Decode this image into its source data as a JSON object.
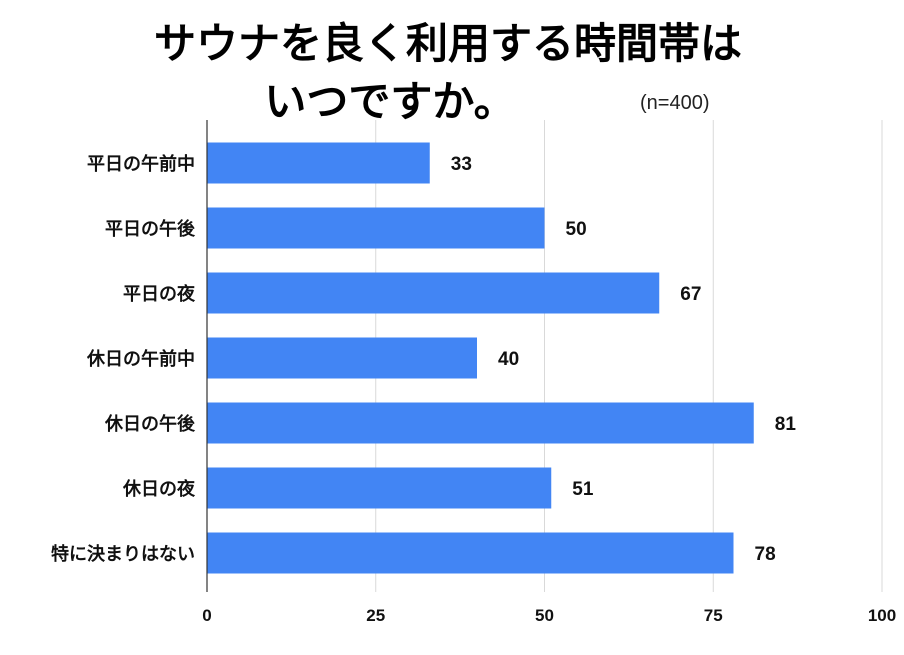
{
  "chart_data": {
    "type": "bar",
    "orientation": "horizontal",
    "title_lines": [
      "サウナを良く利用する時間帯は",
      "いつですか。"
    ],
    "annotation": "(n=400)",
    "categories": [
      "平日の午前中",
      "平日の午後",
      "平日の夜",
      "休日の午前中",
      "休日の午後",
      "休日の夜",
      "特に決まりはない"
    ],
    "values": [
      33,
      50,
      67,
      40,
      81,
      51,
      78
    ],
    "xlim": [
      0,
      100
    ],
    "xticks": [
      0,
      25,
      50,
      75,
      100
    ],
    "bar_color": "#4285f4",
    "grid": true,
    "legend": "none"
  }
}
